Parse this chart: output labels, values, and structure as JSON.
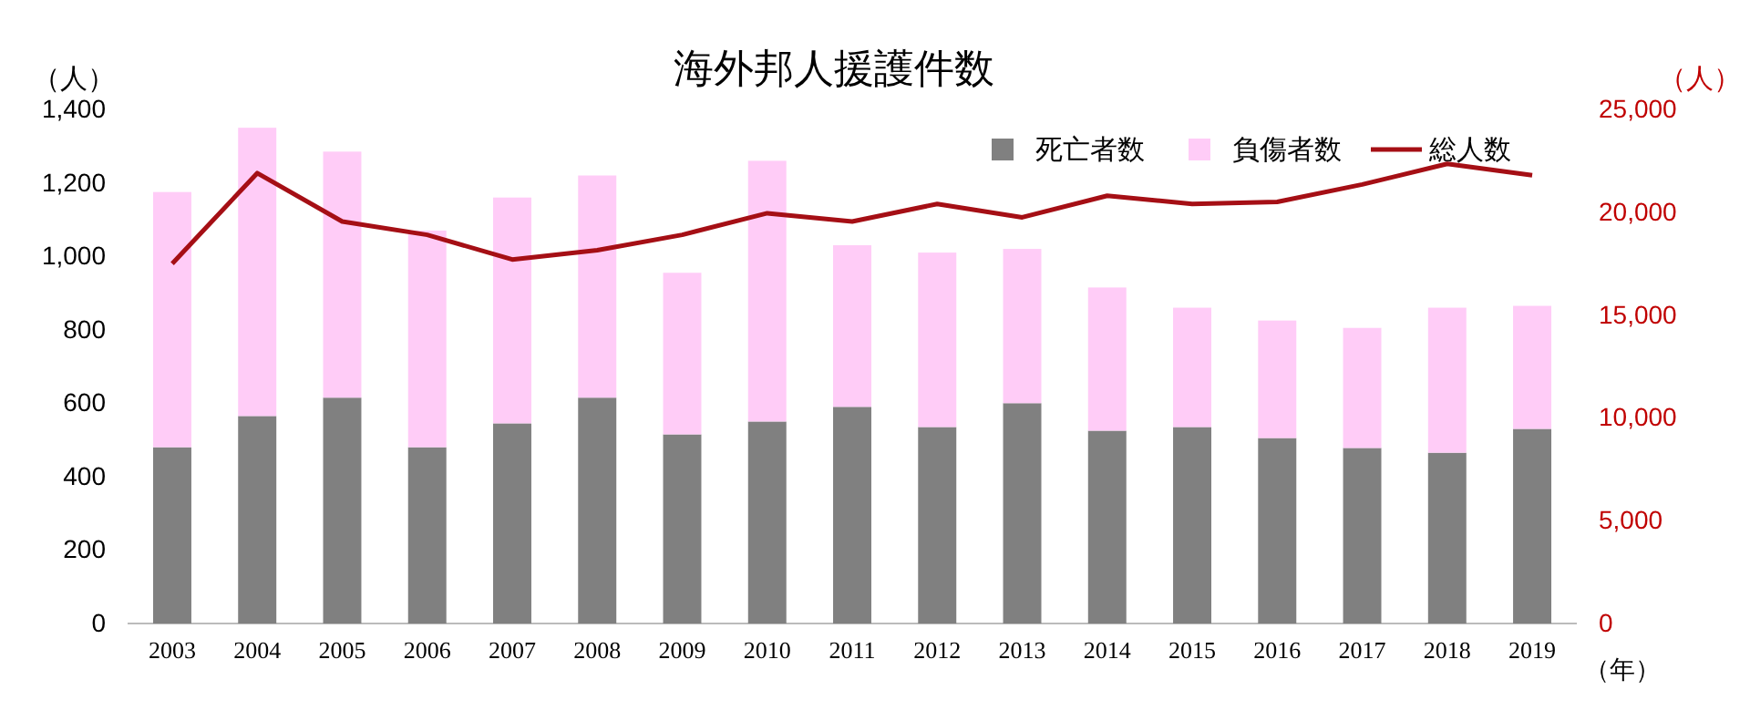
{
  "chart_data": {
    "type": "bar",
    "stacked": true,
    "title": "海外邦人援護件数",
    "xlabel": "（年）",
    "ylabel": "（人）",
    "y2label": "（人）",
    "categories": [
      "2003",
      "2004",
      "2005",
      "2006",
      "2007",
      "2008",
      "2009",
      "2010",
      "2011",
      "2012",
      "2013",
      "2014",
      "2015",
      "2016",
      "2017",
      "2018",
      "2019"
    ],
    "series": [
      {
        "name": "死亡者数",
        "color": "#808080",
        "values": [
          480,
          565,
          615,
          480,
          545,
          615,
          515,
          550,
          590,
          535,
          600,
          525,
          535,
          505,
          478,
          465,
          530
        ]
      },
      {
        "name": "負傷者数",
        "color": "#ffccf7",
        "values": [
          695,
          785,
          670,
          590,
          615,
          605,
          440,
          710,
          440,
          475,
          420,
          390,
          325,
          320,
          327,
          395,
          335
        ]
      },
      {
        "name": "総人数",
        "type": "line",
        "axis": "y2",
        "color": "#a50f15",
        "values": [
          17500,
          21900,
          19550,
          18900,
          17700,
          18150,
          18900,
          19950,
          19550,
          20400,
          19750,
          20800,
          20400,
          20500,
          21350,
          22350,
          21800
        ]
      }
    ],
    "ylim": [
      0,
      1400
    ],
    "yticks": [
      0,
      200,
      400,
      600,
      800,
      {
        "value": 1000,
        "label": "1,000"
      },
      {
        "value": 1200,
        "label": "1,200"
      },
      {
        "value": 1400,
        "label": "1,400"
      }
    ],
    "y2lim": [
      0,
      25000
    ],
    "y2ticks": [
      0,
      {
        "value": 5000,
        "label": "5,000"
      },
      {
        "value": 10000,
        "label": "10,000"
      },
      {
        "value": 15000,
        "label": "15,000"
      },
      {
        "value": 20000,
        "label": "20,000"
      },
      {
        "value": 25000,
        "label": "25,000"
      }
    ],
    "legend": "top right",
    "grid": false,
    "marker": "none",
    "line_style": "solid"
  }
}
